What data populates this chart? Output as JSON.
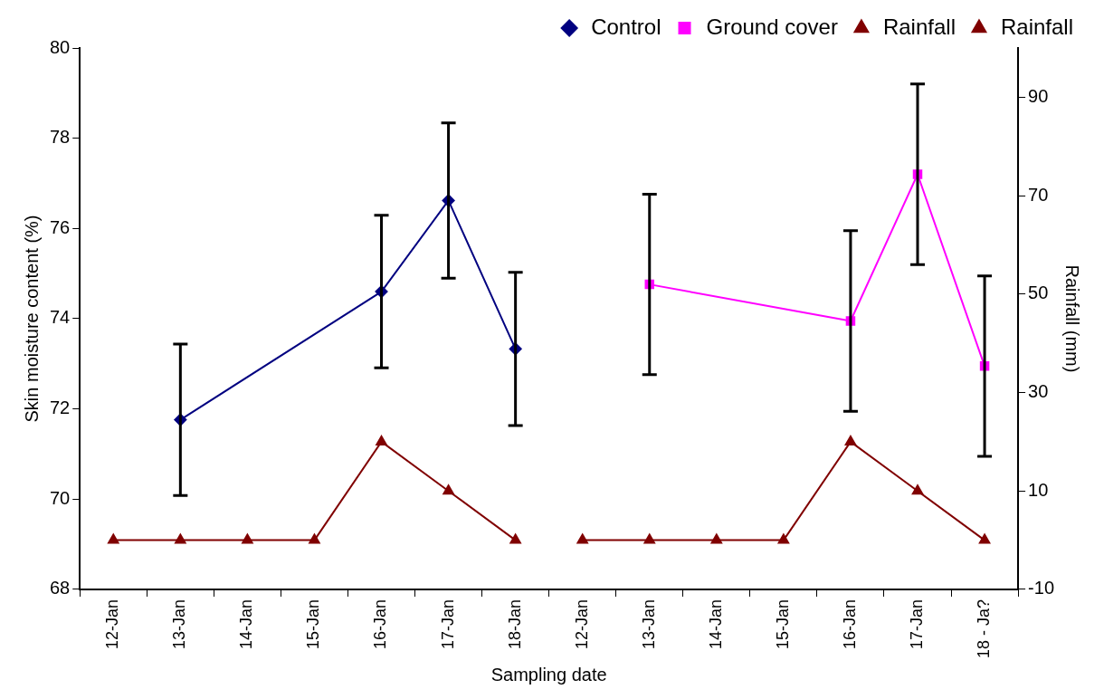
{
  "chart_data": {
    "type": "line",
    "xlabel": "Sampling date",
    "ylabel": "Skin moisture content (%)",
    "y2label": "Rainfall (mm)",
    "categories": [
      "12-Jan",
      "13-Jan",
      "14-Jan",
      "15-Jan",
      "16-Jan",
      "17-Jan",
      "18-Jan",
      "12-Jan",
      "13-Jan",
      "14-Jan",
      "15-Jan",
      "16-Jan",
      "17-Jan",
      "18 - Ja?"
    ],
    "series": [
      {
        "name": "Control",
        "color": "#000080",
        "marker": "diamond",
        "values": [
          null,
          71.76,
          null,
          null,
          74.6,
          76.62,
          73.33,
          null,
          null,
          null,
          null,
          null,
          null,
          null
        ],
        "errors": [
          null,
          1.68,
          null,
          null,
          1.69,
          1.72,
          1.7,
          null,
          null,
          null,
          null,
          null,
          null,
          null
        ]
      },
      {
        "name": "Ground cover",
        "color": "#ff00ff",
        "marker": "square",
        "values": [
          null,
          null,
          null,
          null,
          null,
          null,
          null,
          null,
          74.76,
          null,
          null,
          73.95,
          77.2,
          72.95
        ],
        "errors": [
          null,
          null,
          null,
          null,
          null,
          null,
          null,
          null,
          2.0,
          null,
          null,
          2.0,
          2.0,
          2.0
        ]
      },
      {
        "name": "Rainfall",
        "color": "#800000",
        "marker": "triangle",
        "axis": "y2",
        "values": [
          0,
          0,
          0,
          0,
          20,
          10,
          0,
          null,
          null,
          null,
          null,
          null,
          null,
          null
        ]
      },
      {
        "name": "Rainfall",
        "color": "#800000",
        "marker": "triangle",
        "axis": "y2",
        "values": [
          null,
          null,
          null,
          null,
          null,
          null,
          null,
          0,
          0,
          0,
          0,
          20,
          10,
          0
        ]
      }
    ],
    "ylim": [
      68,
      80
    ],
    "yticks": [
      68,
      70,
      72,
      74,
      76,
      78,
      80
    ],
    "y2lim": [
      -10,
      100
    ],
    "y2ticks": [
      -10,
      10,
      30,
      50,
      70,
      90
    ],
    "grid": false,
    "legend": "top"
  }
}
